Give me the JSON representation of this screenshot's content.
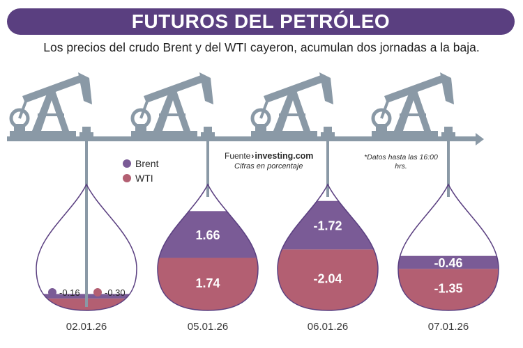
{
  "title": "FUTUROS DEL PETRÓLEO",
  "subtitle": "Los precios del crudo Brent y del WTI cayeron, acumulan dos jornadas a la baja.",
  "legend": {
    "brent": "Brent",
    "wti": "WTI"
  },
  "source": {
    "label": "Fuente",
    "arrow": "›",
    "name": "investing.com",
    "note": "Cifras en porcentaje"
  },
  "footnote": "*Datos hasta las 16:00 hrs.",
  "colors": {
    "brent": "#7a5b96",
    "wti": "#b35f72",
    "title_bg": "#5a3f80",
    "pumpjack": "#8a99a6",
    "drop_outline": "#5a3f80"
  },
  "chart_data": {
    "type": "bar",
    "categories": [
      "02.01.26",
      "05.01.26",
      "06.01.26",
      "07.01.26"
    ],
    "series": [
      {
        "name": "Brent",
        "values": [
          -0.16,
          1.66,
          -1.72,
          -0.46
        ],
        "labels": [
          "-0.16",
          "1.66",
          "-1.72",
          "-0.46"
        ]
      },
      {
        "name": "WTI",
        "values": [
          -0.3,
          1.74,
          -2.04,
          -1.35
        ],
        "labels": [
          "-0.30",
          "1.74",
          "-2.04",
          "-1.35"
        ]
      }
    ],
    "ylabel": "",
    "xlabel": "",
    "unit": "%"
  }
}
